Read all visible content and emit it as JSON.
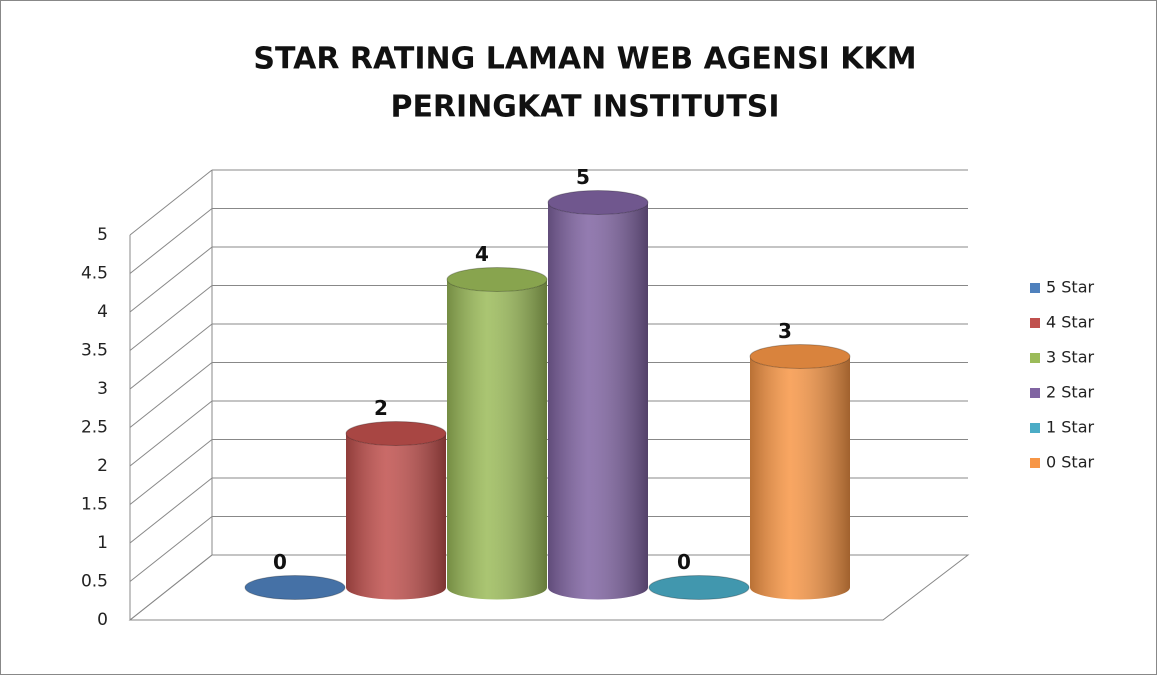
{
  "chart_data": {
    "type": "bar3d",
    "title": [
      "STAR RATING LAMAN WEB AGENSI KKM",
      "PERINGKAT INSTITUTSI"
    ],
    "series": [
      {
        "name": "5 Star",
        "color": "#4f81bd",
        "values": [
          0
        ]
      },
      {
        "name": "4 Star",
        "color": "#c0504d",
        "values": [
          2
        ]
      },
      {
        "name": "3 Star",
        "color": "#9bbb59",
        "values": [
          4
        ]
      },
      {
        "name": "2 Star",
        "color": "#8064a2",
        "values": [
          5
        ]
      },
      {
        "name": "1 Star",
        "color": "#4bacc6",
        "values": [
          0
        ]
      },
      {
        "name": "0 Star",
        "color": "#f79646",
        "values": [
          3
        ]
      }
    ],
    "ylim": [
      0,
      5
    ],
    "yticks": [
      0,
      0.5,
      1,
      1.5,
      2,
      2.5,
      3,
      3.5,
      4,
      4.5,
      5
    ],
    "grid": true,
    "legend": "right"
  }
}
